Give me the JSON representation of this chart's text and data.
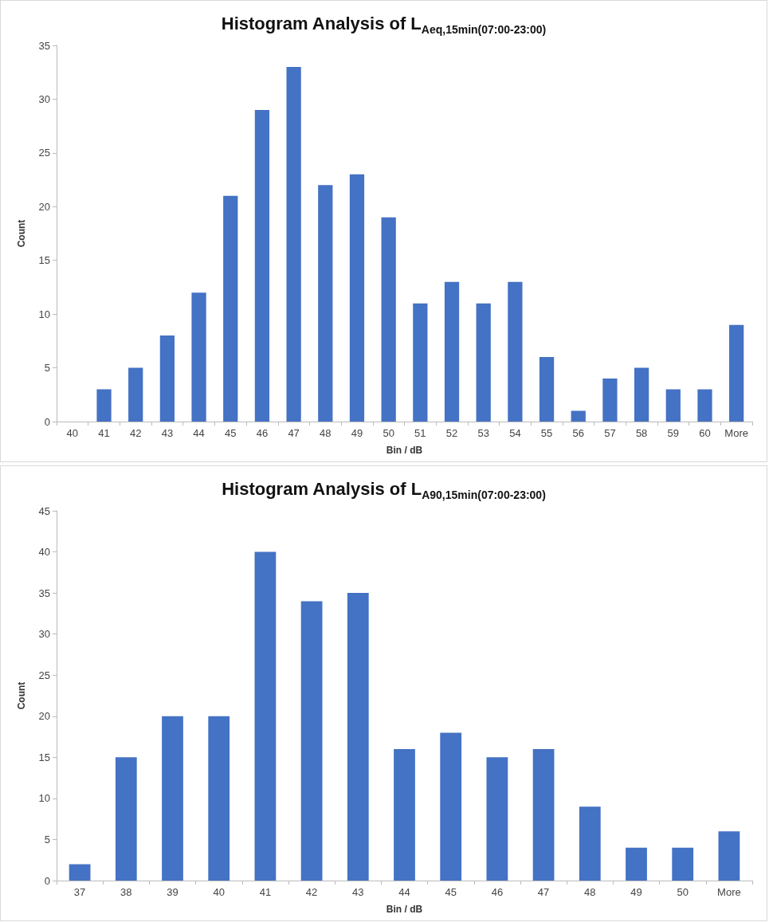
{
  "chart_data": [
    {
      "type": "bar",
      "title": "Histogram Analysis of L$_{Aeq,15min(07:00-23:00)}$",
      "xlabel": "Bin / dB",
      "ylabel": "Count",
      "categories": [
        "40",
        "41",
        "42",
        "43",
        "44",
        "45",
        "46",
        "47",
        "48",
        "49",
        "50",
        "51",
        "52",
        "53",
        "54",
        "55",
        "56",
        "57",
        "58",
        "59",
        "60",
        "More"
      ],
      "values": [
        0,
        3,
        5,
        8,
        12,
        21,
        29,
        33,
        22,
        23,
        19,
        11,
        13,
        11,
        13,
        6,
        1,
        4,
        5,
        3,
        3,
        9
      ],
      "color": "#4472c4",
      "ylim": [
        0,
        35
      ],
      "yticks": [
        0,
        5,
        10,
        15,
        20,
        25,
        30,
        35
      ]
    },
    {
      "type": "bar",
      "title": "Histogram Analysis of L$_{A90,15min(07:00-23:00)}$",
      "xlabel": "Bin / dB",
      "ylabel": "Count",
      "categories": [
        "37",
        "38",
        "39",
        "40",
        "41",
        "42",
        "43",
        "44",
        "45",
        "46",
        "47",
        "48",
        "49",
        "50",
        "More"
      ],
      "values": [
        2,
        15,
        20,
        20,
        40,
        34,
        35,
        16,
        18,
        15,
        16,
        9,
        4,
        4,
        6
      ],
      "color": "#4472c4",
      "ylim": [
        0,
        45
      ],
      "yticks": [
        0,
        5,
        10,
        15,
        20,
        25,
        30,
        35,
        40,
        45
      ]
    }
  ]
}
